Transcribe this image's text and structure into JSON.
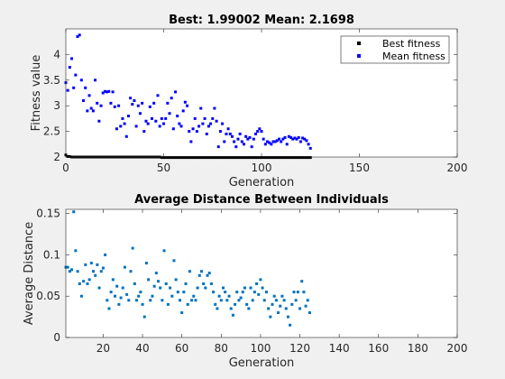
{
  "chart_data": [
    {
      "type": "scatter",
      "title": "Best: 1.99002 Mean: 2.1698",
      "xlabel": "Generation",
      "ylabel": "Fitness value",
      "xlim": [
        0,
        200
      ],
      "ylim": [
        2,
        4.5
      ],
      "xticks": [
        0,
        50,
        100,
        150,
        200
      ],
      "yticks": [
        2,
        2.5,
        3,
        3.5,
        4
      ],
      "grid": false,
      "legend_position": "top-right",
      "series": [
        {
          "name": "Best fitness",
          "color": "#000000",
          "marker": "square",
          "x": [
            0,
            1,
            2,
            3,
            4,
            5,
            6,
            7,
            8,
            9,
            10,
            11,
            12,
            13,
            14,
            15,
            16,
            17,
            18,
            19,
            20,
            21,
            22,
            23,
            24,
            25,
            26,
            27,
            28,
            29,
            30,
            31,
            32,
            33,
            34,
            35,
            36,
            37,
            38,
            39,
            40,
            41,
            42,
            43,
            44,
            45,
            46,
            47,
            48,
            49,
            50,
            51,
            52,
            53,
            54,
            55,
            56,
            57,
            58,
            59,
            60,
            61,
            62,
            63,
            64,
            65,
            66,
            67,
            68,
            69,
            70,
            71,
            72,
            73,
            74,
            75,
            76,
            77,
            78,
            79,
            80,
            81,
            82,
            83,
            84,
            85,
            86,
            87,
            88,
            89,
            90,
            91,
            92,
            93,
            94,
            95,
            96,
            97,
            98,
            99,
            100,
            101,
            102,
            103,
            104,
            105,
            106,
            107,
            108,
            109,
            110,
            111,
            112,
            113,
            114,
            115,
            116,
            117,
            118,
            119,
            120,
            121,
            122,
            123,
            124,
            125
          ],
          "y": [
            2.04,
            2.01,
            2.01,
            2.0,
            2.0,
            2.0,
            2.0,
            2.0,
            2.0,
            2.0,
            2.0,
            2.0,
            2.0,
            2.0,
            2.0,
            2.0,
            2.0,
            2.0,
            2.0,
            2.0,
            2.0,
            2.0,
            2.0,
            2.0,
            2.0,
            2.0,
            2.0,
            2.0,
            2.0,
            2.0,
            2.0,
            2.0,
            2.0,
            2.0,
            2.0,
            2.0,
            2.0,
            2.0,
            2.0,
            2.0,
            2.0,
            2.0,
            2.0,
            2.0,
            2.0,
            2.0,
            2.0,
            2.0,
            2.0,
            1.99,
            1.99,
            1.99,
            1.99,
            1.99,
            1.99,
            1.99,
            1.99,
            1.99,
            1.99,
            1.99,
            1.99,
            1.99,
            1.99,
            1.99,
            1.99,
            1.99,
            1.99,
            1.99,
            1.99,
            1.99,
            1.99,
            1.99,
            1.99,
            1.99,
            1.99,
            1.99,
            1.99,
            1.99,
            1.99,
            1.99,
            1.99,
            1.99,
            1.99,
            1.99,
            1.99,
            1.99,
            1.99,
            1.99,
            1.99,
            1.99,
            1.99,
            1.99,
            1.99,
            1.99,
            1.99,
            1.99,
            1.99,
            1.99,
            1.99,
            1.99,
            1.99,
            1.99,
            1.99,
            1.99,
            1.99,
            1.99,
            1.99,
            1.99,
            1.99,
            1.99,
            1.99,
            1.99,
            1.99,
            1.99,
            1.99,
            1.99,
            1.99,
            1.99,
            1.99,
            1.99,
            1.99,
            1.99,
            1.99,
            1.99,
            1.99,
            1.99
          ]
        },
        {
          "name": "Mean fitness",
          "color": "#0000ff",
          "marker": "square",
          "x": [
            0,
            1,
            2,
            3,
            4,
            5,
            6,
            7,
            8,
            9,
            10,
            11,
            12,
            13,
            14,
            15,
            16,
            17,
            18,
            19,
            20,
            21,
            22,
            23,
            24,
            25,
            26,
            27,
            28,
            29,
            30,
            31,
            32,
            33,
            34,
            35,
            36,
            37,
            38,
            39,
            40,
            41,
            42,
            43,
            44,
            45,
            46,
            47,
            48,
            49,
            50,
            51,
            52,
            53,
            54,
            55,
            56,
            57,
            58,
            59,
            60,
            61,
            62,
            63,
            64,
            65,
            66,
            67,
            68,
            69,
            70,
            71,
            72,
            73,
            74,
            75,
            76,
            77,
            78,
            79,
            80,
            81,
            82,
            83,
            84,
            85,
            86,
            87,
            88,
            89,
            90,
            91,
            92,
            93,
            94,
            95,
            96,
            97,
            98,
            99,
            100,
            101,
            102,
            103,
            104,
            105,
            106,
            107,
            108,
            109,
            110,
            111,
            112,
            113,
            114,
            115,
            116,
            117,
            118,
            119,
            120,
            121,
            122,
            123,
            124,
            125
          ],
          "y": [
            3.45,
            3.3,
            3.75,
            3.92,
            3.35,
            3.6,
            4.35,
            4.38,
            3.5,
            3.1,
            3.35,
            2.9,
            3.2,
            2.95,
            2.9,
            3.5,
            3.05,
            2.7,
            3.0,
            3.25,
            3.28,
            3.27,
            3.28,
            3.05,
            3.27,
            2.98,
            2.55,
            3.0,
            2.6,
            2.75,
            2.65,
            2.4,
            2.8,
            3.15,
            3.03,
            3.1,
            2.6,
            3.0,
            2.85,
            3.05,
            2.5,
            2.7,
            2.65,
            2.98,
            2.75,
            3.05,
            2.7,
            3.2,
            2.6,
            2.75,
            2.65,
            2.75,
            3.05,
            2.85,
            3.15,
            2.55,
            3.27,
            2.8,
            2.65,
            2.6,
            2.9,
            3.07,
            3.0,
            2.5,
            2.3,
            2.55,
            2.75,
            2.5,
            2.6,
            2.95,
            2.65,
            2.75,
            2.45,
            2.6,
            2.65,
            2.75,
            2.95,
            2.7,
            2.2,
            2.5,
            2.65,
            2.3,
            2.45,
            2.55,
            2.45,
            2.4,
            2.3,
            2.2,
            2.35,
            2.45,
            2.3,
            2.25,
            2.4,
            2.35,
            2.38,
            2.2,
            2.35,
            2.45,
            2.5,
            2.55,
            2.5,
            2.35,
            2.25,
            2.3,
            2.28,
            2.25,
            2.3,
            2.3,
            2.32,
            2.35,
            2.3,
            2.35,
            2.38,
            2.25,
            2.4,
            2.38,
            2.35,
            2.37,
            2.35,
            2.38,
            2.3,
            2.37,
            2.35,
            2.32,
            2.25,
            2.17
          ]
        }
      ]
    },
    {
      "type": "scatter",
      "title": "Average Distance Between Individuals",
      "xlabel": "Generation",
      "ylabel": "Average Distance",
      "xlim": [
        1,
        200
      ],
      "ylim": [
        0,
        0.155
      ],
      "xticks": [
        20,
        40,
        60,
        80,
        100,
        120,
        140,
        160,
        180,
        200
      ],
      "yticks": [
        0,
        0.05,
        0.1,
        0.15
      ],
      "ytick_labels": [
        "0",
        "0.05",
        "0.1",
        "0.15"
      ],
      "grid": false,
      "series": [
        {
          "color": "#0072bd",
          "marker": "square",
          "x": [
            1,
            2,
            3,
            4,
            5,
            6,
            7,
            8,
            9,
            10,
            11,
            12,
            13,
            14,
            15,
            16,
            17,
            18,
            19,
            20,
            21,
            22,
            23,
            24,
            25,
            26,
            27,
            28,
            29,
            30,
            31,
            32,
            33,
            34,
            35,
            36,
            37,
            38,
            39,
            40,
            41,
            42,
            43,
            44,
            45,
            46,
            47,
            48,
            49,
            50,
            51,
            52,
            53,
            54,
            55,
            56,
            57,
            58,
            59,
            60,
            61,
            62,
            63,
            64,
            65,
            66,
            67,
            68,
            69,
            70,
            71,
            72,
            73,
            74,
            75,
            76,
            77,
            78,
            79,
            80,
            81,
            82,
            83,
            84,
            85,
            86,
            87,
            88,
            89,
            90,
            91,
            92,
            93,
            94,
            95,
            96,
            97,
            98,
            99,
            100,
            101,
            102,
            103,
            104,
            105,
            106,
            107,
            108,
            109,
            110,
            111,
            112,
            113,
            114,
            115,
            116,
            117,
            118,
            119,
            120,
            121,
            122,
            123,
            124,
            125
          ],
          "y": [
            0.085,
            0.085,
            0.08,
            0.082,
            0.152,
            0.105,
            0.08,
            0.065,
            0.05,
            0.068,
            0.088,
            0.065,
            0.07,
            0.09,
            0.08,
            0.075,
            0.088,
            0.06,
            0.08,
            0.084,
            0.1,
            0.045,
            0.035,
            0.055,
            0.07,
            0.05,
            0.062,
            0.04,
            0.048,
            0.06,
            0.085,
            0.052,
            0.045,
            0.08,
            0.108,
            0.065,
            0.045,
            0.05,
            0.055,
            0.04,
            0.025,
            0.09,
            0.07,
            0.045,
            0.05,
            0.062,
            0.078,
            0.068,
            0.06,
            0.045,
            0.105,
            0.065,
            0.04,
            0.06,
            0.05,
            0.093,
            0.07,
            0.055,
            0.045,
            0.03,
            0.055,
            0.065,
            0.04,
            0.08,
            0.045,
            0.05,
            0.045,
            0.06,
            0.075,
            0.08,
            0.065,
            0.06,
            0.075,
            0.078,
            0.065,
            0.055,
            0.04,
            0.035,
            0.05,
            0.045,
            0.06,
            0.055,
            0.045,
            0.05,
            0.035,
            0.027,
            0.04,
            0.055,
            0.045,
            0.048,
            0.055,
            0.06,
            0.04,
            0.035,
            0.06,
            0.045,
            0.055,
            0.065,
            0.052,
            0.07,
            0.06,
            0.045,
            0.055,
            0.035,
            0.025,
            0.04,
            0.05,
            0.045,
            0.03,
            0.038,
            0.05,
            0.045,
            0.035,
            0.025,
            0.015,
            0.04,
            0.055,
            0.045,
            0.055,
            0.035,
            0.068,
            0.055,
            0.038,
            0.045,
            0.03
          ]
        }
      ]
    }
  ]
}
